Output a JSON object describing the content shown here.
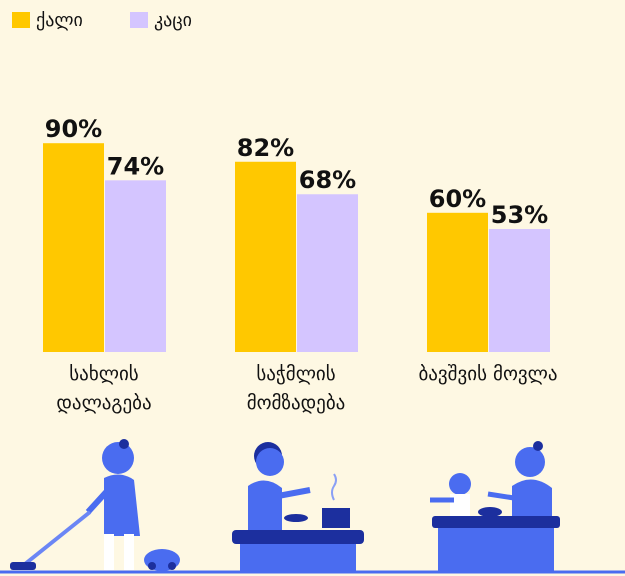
{
  "chart_data": {
    "type": "bar",
    "categories": [
      "სახლის დალაგება",
      "საჭმლის მომზადება",
      "ბავშვის მოვლა"
    ],
    "series": [
      {
        "name": "ქალი",
        "color": "#ffc800",
        "values": [
          90,
          82,
          60
        ],
        "value_labels": [
          "90%",
          "82%",
          "60%"
        ]
      },
      {
        "name": "კაცი",
        "color": "#d4c5ff",
        "values": [
          74,
          68,
          53
        ],
        "value_labels": [
          "74%",
          "68%",
          "53%"
        ]
      }
    ]
  }
}
